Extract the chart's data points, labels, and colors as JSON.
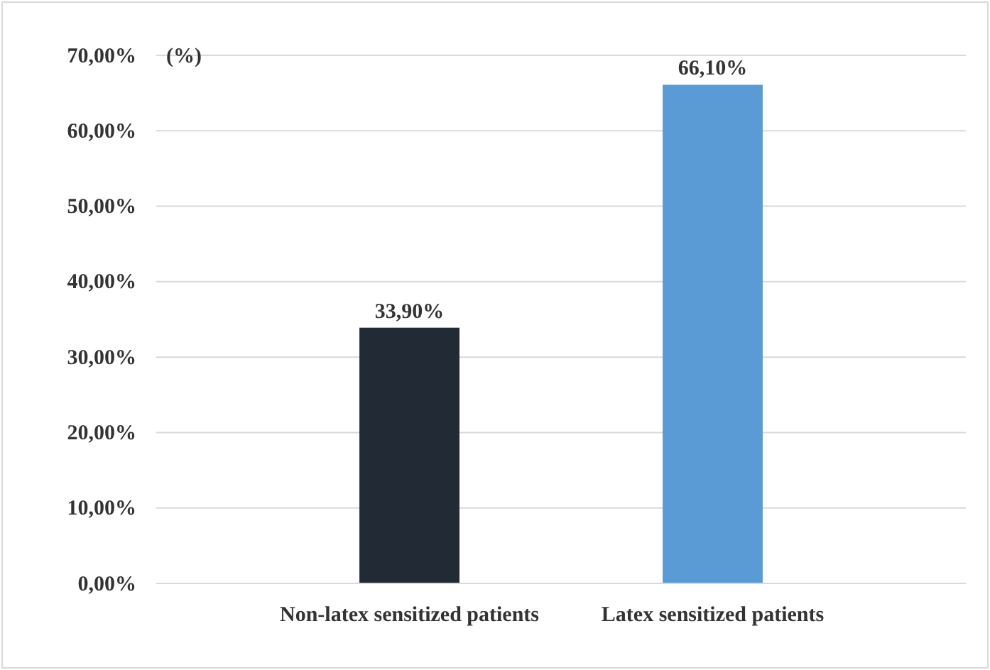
{
  "chart_data": {
    "type": "bar",
    "ylabel": "(%)",
    "categories": [
      "Non-latex sensitized patients",
      "Latex sensitized patients"
    ],
    "values": [
      33.9,
      66.1
    ],
    "colors": [
      "#222a35",
      "#5b9bd5"
    ],
    "value_labels": [
      "33,90%",
      "66,10%"
    ],
    "ylim": [
      0,
      70
    ],
    "yticks": [
      {
        "value": 0,
        "label": "0,00%"
      },
      {
        "value": 10,
        "label": "10,00%"
      },
      {
        "value": 20,
        "label": "20,00%"
      },
      {
        "value": 30,
        "label": "30,00%"
      },
      {
        "value": 40,
        "label": "40,00%"
      },
      {
        "value": 50,
        "label": "50,00%"
      },
      {
        "value": 60,
        "label": "60,00%"
      },
      {
        "value": 70,
        "label": "70,00%"
      }
    ],
    "grid": "y"
  }
}
